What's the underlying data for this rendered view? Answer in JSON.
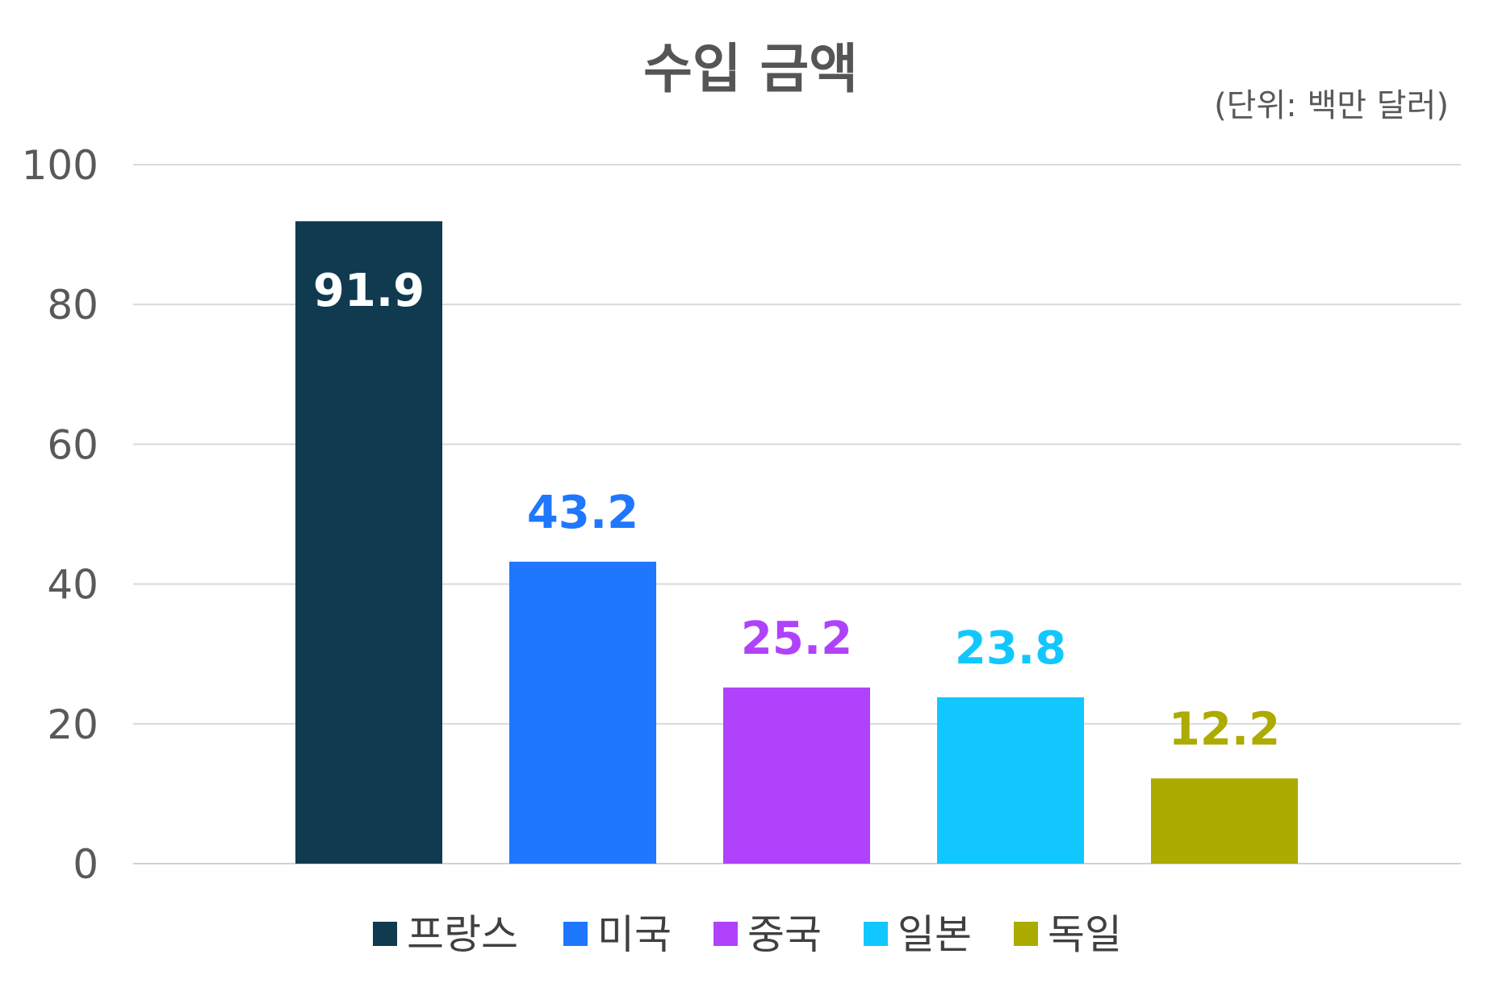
{
  "chart_data": {
    "type": "bar",
    "title": "수입 금액",
    "unit_label": "(단위: 백만 달러)",
    "categories": [
      "프랑스",
      "미국",
      "중국",
      "일본",
      "독일"
    ],
    "values": [
      91.9,
      43.2,
      25.2,
      23.8,
      12.2
    ],
    "value_labels": [
      "91.9",
      "43.2",
      "25.2",
      "23.8",
      "12.2"
    ],
    "colors": [
      "#0f3a4f",
      "#1f77fe",
      "#b042fb",
      "#12c7fe",
      "#abab00"
    ],
    "label_colors": [
      "#ffffff",
      "#1f77fe",
      "#b042fb",
      "#12c7fe",
      "#abab00"
    ],
    "label_inside": [
      true,
      false,
      false,
      false,
      false
    ],
    "ylim": [
      0,
      100
    ],
    "yticks": [
      0,
      20,
      40,
      60,
      80,
      100
    ],
    "ytick_labels": [
      "0",
      "20",
      "40",
      "60",
      "80",
      "100"
    ],
    "grid": true,
    "legend_position": "bottom",
    "xlabel": "",
    "ylabel": ""
  }
}
